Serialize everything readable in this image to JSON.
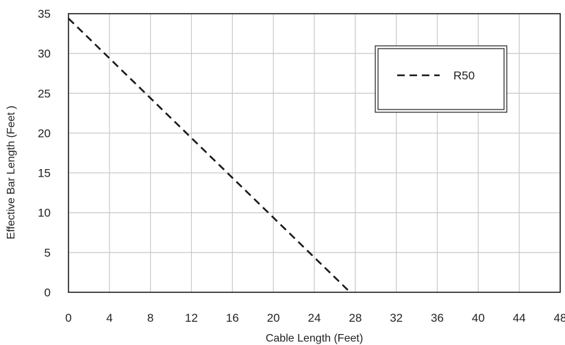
{
  "chart_data": {
    "type": "line",
    "title": "",
    "xlabel": "Cable Length (Feet)",
    "ylabel": "Effective Bar Length (Feet )",
    "xlim": [
      0,
      48
    ],
    "ylim": [
      0,
      35
    ],
    "x_ticks": [
      0,
      4,
      8,
      12,
      16,
      20,
      24,
      28,
      32,
      36,
      40,
      44,
      48
    ],
    "y_ticks": [
      0,
      5,
      10,
      15,
      20,
      25,
      30,
      35
    ],
    "grid": true,
    "legend_position": "top-right",
    "series": [
      {
        "name": "R50",
        "style": "dashed",
        "color": "#1a1a1a",
        "x": [
          0,
          27.5
        ],
        "y": [
          34.4,
          0
        ]
      }
    ]
  }
}
